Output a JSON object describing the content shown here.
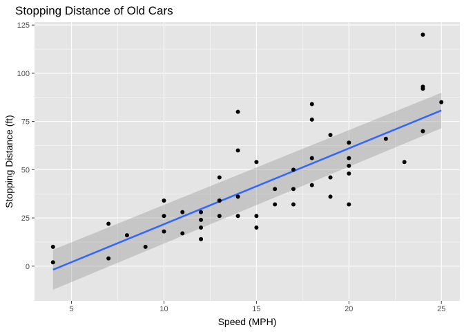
{
  "chart_data": {
    "type": "scatter",
    "title": "Stopping Distance of Old Cars",
    "xlabel": "Speed (MPH)",
    "ylabel": "Stopping Distance (ft)",
    "xlim": [
      3.0,
      26.0
    ],
    "ylim": [
      -18.0,
      126.5
    ],
    "x_ticks": [
      5,
      10,
      15,
      20,
      25
    ],
    "y_ticks": [
      0,
      25,
      50,
      75,
      100,
      125
    ],
    "grid": true,
    "legend": "none",
    "colors": {
      "panel": "#e5e5e5",
      "grid": "#ffffff",
      "points": "#000000",
      "fit_line": "#3366ff",
      "band": "#999999"
    },
    "points": [
      [
        4,
        2
      ],
      [
        4,
        10
      ],
      [
        7,
        4
      ],
      [
        7,
        22
      ],
      [
        8,
        16
      ],
      [
        9,
        10
      ],
      [
        10,
        18
      ],
      [
        10,
        26
      ],
      [
        10,
        34
      ],
      [
        11,
        17
      ],
      [
        11,
        28
      ],
      [
        12,
        14
      ],
      [
        12,
        20
      ],
      [
        12,
        24
      ],
      [
        12,
        28
      ],
      [
        13,
        26
      ],
      [
        13,
        34
      ],
      [
        13,
        34
      ],
      [
        13,
        46
      ],
      [
        14,
        26
      ],
      [
        14,
        36
      ],
      [
        14,
        60
      ],
      [
        14,
        80
      ],
      [
        15,
        20
      ],
      [
        15,
        26
      ],
      [
        15,
        54
      ],
      [
        16,
        32
      ],
      [
        16,
        40
      ],
      [
        17,
        32
      ],
      [
        17,
        40
      ],
      [
        17,
        50
      ],
      [
        18,
        42
      ],
      [
        18,
        56
      ],
      [
        18,
        76
      ],
      [
        18,
        84
      ],
      [
        19,
        36
      ],
      [
        19,
        46
      ],
      [
        19,
        68
      ],
      [
        20,
        32
      ],
      [
        20,
        48
      ],
      [
        20,
        52
      ],
      [
        20,
        56
      ],
      [
        20,
        64
      ],
      [
        22,
        66
      ],
      [
        23,
        54
      ],
      [
        24,
        70
      ],
      [
        24,
        92
      ],
      [
        24,
        93
      ],
      [
        24,
        120
      ],
      [
        25,
        85
      ]
    ],
    "fit": {
      "method": "linear",
      "x": [
        4,
        25
      ],
      "y": [
        -1.85,
        80.73
      ],
      "ci_lower": [
        -12.2,
        71.5
      ],
      "ci_upper": [
        8.5,
        89.9
      ]
    }
  }
}
